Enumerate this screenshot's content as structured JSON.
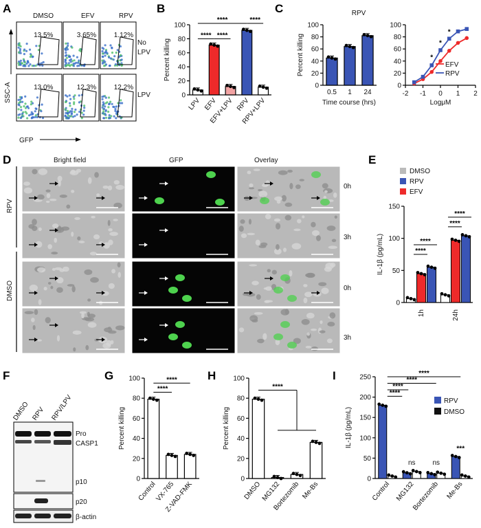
{
  "panels": [
    "A",
    "B",
    "C",
    "D",
    "E",
    "F",
    "G",
    "H",
    "I"
  ],
  "panelA": {
    "cols": [
      "DMSO",
      "EFV",
      "RPV"
    ],
    "rows": [
      "No LPV",
      "LPV"
    ],
    "values": [
      [
        "13.5%",
        "3.65%",
        "1.12%"
      ],
      [
        "13.0%",
        "12.3%",
        "12.2%"
      ]
    ],
    "ylabel": "SSC-A",
    "xlabel": "GFP"
  },
  "panelD": {
    "cols": [
      "Bright field",
      "GFP",
      "Overlay"
    ],
    "groups": [
      "RPV",
      "DMSO"
    ],
    "times": [
      "0h",
      "3h",
      "0h",
      "3h"
    ]
  },
  "panelF": {
    "lanes": [
      "DMSO",
      "RPV",
      "RPV/LPV"
    ],
    "bands": [
      "Pro",
      "CASP1",
      "p10",
      "p20",
      "β-actin"
    ]
  },
  "chart_data": [
    {
      "id": "B",
      "type": "bar",
      "categories": [
        "LPV",
        "EFV",
        "EFV+LPV",
        "RPV",
        "RPV+LPV"
      ],
      "values": [
        7,
        71,
        12,
        92,
        11
      ],
      "colors": [
        "#ffffff",
        "#ee2a2a",
        "#f2a3a3",
        "#3a55b5",
        "#ffffff"
      ],
      "ylabel": "Percent killing",
      "ylim": [
        0,
        100
      ],
      "yticks": [
        0,
        20,
        40,
        60,
        80,
        100
      ],
      "annotations": [
        "****",
        "****",
        "****",
        "****"
      ]
    },
    {
      "id": "C1",
      "type": "bar",
      "title": "RPV",
      "categories": [
        "0.5",
        "1",
        "24"
      ],
      "values": [
        45,
        64,
        82
      ],
      "ylabel": "Percent killing",
      "xlabel": "Time course (hrs)",
      "ylim": [
        0,
        100
      ],
      "yticks": [
        0,
        20,
        40,
        60,
        80,
        100
      ]
    },
    {
      "id": "C2",
      "type": "line",
      "xlabel": "LogμM",
      "xticks": [
        -2,
        -1,
        0,
        1,
        2
      ],
      "yticks": [
        0,
        20,
        40,
        60,
        80,
        100
      ],
      "xlim": [
        -2,
        2
      ],
      "ylim": [
        0,
        100
      ],
      "series": [
        {
          "name": "EFV",
          "color": "#ee2a2a",
          "x": [
            -1.5,
            -1,
            -0.5,
            0,
            0.5,
            1,
            1.5
          ],
          "y": [
            3,
            10,
            22,
            40,
            57,
            70,
            78
          ]
        },
        {
          "name": "RPV",
          "color": "#3a55b5",
          "x": [
            -1.5,
            -1,
            -0.5,
            0,
            0.5,
            1,
            1.5
          ],
          "y": [
            5,
            14,
            33,
            58,
            77,
            89,
            93
          ]
        }
      ],
      "annotations": [
        "*",
        "*",
        "*"
      ]
    },
    {
      "id": "E",
      "type": "bar",
      "categories": [
        "1h",
        "24h"
      ],
      "series": [
        {
          "name": "DMSO",
          "color": "#ffffff",
          "values": [
            6,
            12
          ]
        },
        {
          "name": "EFV",
          "color": "#ee2a2a",
          "values": [
            45,
            97
          ]
        },
        {
          "name": "RPV",
          "color": "#3a55b5",
          "values": [
            55,
            104
          ]
        }
      ],
      "legend": [
        "DMSO",
        "RPV",
        "EFV"
      ],
      "ylabel": "IL-1β (pg/mL)",
      "ylim": [
        0,
        150
      ],
      "yticks": [
        0,
        50,
        100,
        150
      ],
      "annotations": [
        "****",
        "****",
        "****",
        "****"
      ]
    },
    {
      "id": "G",
      "type": "bar",
      "categories": [
        "Control",
        "VX-765",
        "Z-VAD-FMK"
      ],
      "values": [
        79,
        23,
        24
      ],
      "ylabel": "Percent killing",
      "ylim": [
        0,
        100
      ],
      "yticks": [
        0,
        20,
        40,
        60,
        80,
        100
      ],
      "annotations": [
        "****",
        "****"
      ]
    },
    {
      "id": "H",
      "type": "bar",
      "categories": [
        "DMSO",
        "MG132",
        "Bortezomib",
        "Me-Bs"
      ],
      "values": [
        79,
        1,
        4,
        36
      ],
      "ylabel": "Percent killing",
      "ylim": [
        0,
        100
      ],
      "yticks": [
        0,
        20,
        40,
        60,
        80,
        100
      ],
      "annotations": [
        "****"
      ]
    },
    {
      "id": "I",
      "type": "bar",
      "categories": [
        "Control",
        "MG132",
        "Bortezomib",
        "Me-Bs"
      ],
      "series": [
        {
          "name": "RPV",
          "color": "#3a55b5",
          "values": [
            180,
            14,
            12,
            54
          ]
        },
        {
          "name": "DMSO",
          "color": "#ffffff",
          "values": [
            6,
            17,
            13,
            6
          ]
        }
      ],
      "legend": [
        "RPV",
        "DMSO"
      ],
      "ylabel": "IL-1β (pg/mL)",
      "ylim": [
        0,
        250
      ],
      "yticks": [
        0,
        50,
        100,
        150,
        200,
        250
      ],
      "annotations": [
        "****",
        "****",
        "****",
        "****",
        "ns",
        "ns",
        "***"
      ]
    }
  ]
}
